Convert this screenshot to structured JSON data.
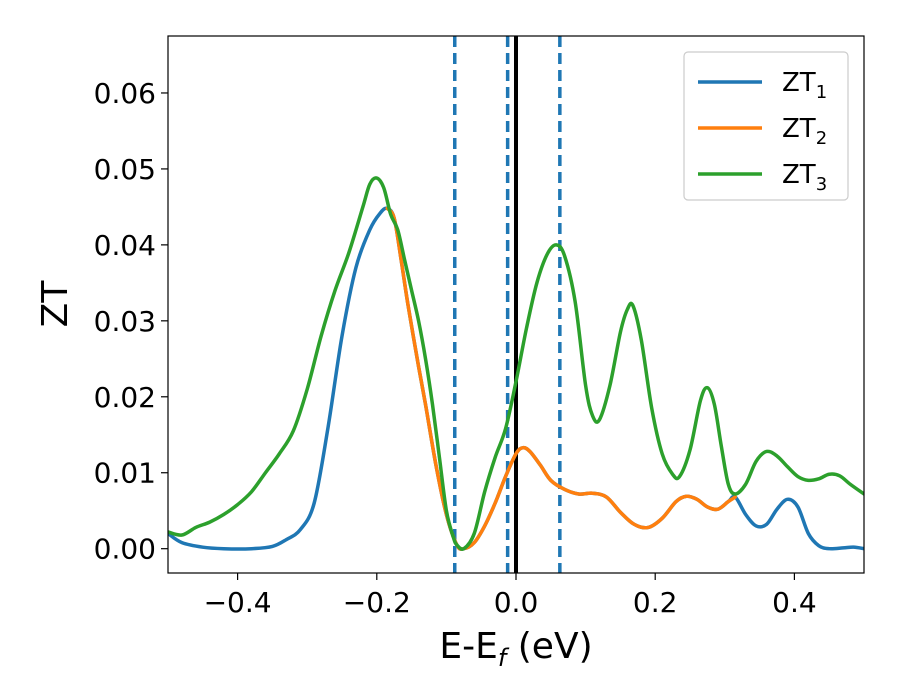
{
  "chart_data": {
    "type": "line",
    "title": "",
    "xlabel": {
      "base": "E-E",
      "sub": "f",
      "unit": " (eV)"
    },
    "ylabel": "ZT",
    "xlim": [
      -0.5,
      0.5
    ],
    "ylim": [
      -0.0032,
      0.0675
    ],
    "xticks": [
      -0.4,
      -0.2,
      0.0,
      0.2,
      0.4
    ],
    "xtick_labels": [
      "−0.4",
      "−0.2",
      "0.0",
      "0.2",
      "0.4"
    ],
    "yticks": [
      0.0,
      0.01,
      0.02,
      0.03,
      0.04,
      0.05,
      0.06
    ],
    "ytick_labels": [
      "0.00",
      "0.01",
      "0.02",
      "0.03",
      "0.04",
      "0.05",
      "0.06"
    ],
    "grid": false,
    "legend_position": "top-right",
    "vertical_lines": [
      {
        "x": -0.088,
        "style": "dashed",
        "color": "#1f77b4"
      },
      {
        "x": -0.012,
        "style": "dashed",
        "color": "#1f77b4"
      },
      {
        "x": 0.0,
        "style": "solid",
        "color": "#000000"
      },
      {
        "x": 0.063,
        "style": "dashed",
        "color": "#1f77b4"
      }
    ],
    "series": [
      {
        "name": {
          "base": "ZT",
          "sub": "1"
        },
        "color": "#1f77b4",
        "points": [
          [
            -0.5,
            0.002
          ],
          [
            -0.48,
            0.0008
          ],
          [
            -0.45,
            0.0002
          ],
          [
            -0.42,
            0.0
          ],
          [
            -0.38,
            0.0
          ],
          [
            -0.35,
            0.0003
          ],
          [
            -0.33,
            0.0012
          ],
          [
            -0.31,
            0.0025
          ],
          [
            -0.29,
            0.006
          ],
          [
            -0.27,
            0.016
          ],
          [
            -0.25,
            0.028
          ],
          [
            -0.23,
            0.037
          ],
          [
            -0.21,
            0.042
          ],
          [
            -0.195,
            0.0442
          ],
          [
            -0.185,
            0.0448
          ],
          [
            -0.175,
            0.0435
          ],
          [
            -0.165,
            0.038
          ],
          [
            -0.155,
            0.032
          ],
          [
            -0.14,
            0.024
          ],
          [
            -0.13,
            0.019
          ],
          [
            -0.115,
            0.011
          ],
          [
            -0.1,
            0.0045
          ],
          [
            -0.085,
            0.0005
          ],
          [
            -0.075,
            0.0
          ],
          [
            -0.06,
            0.0008
          ],
          [
            -0.045,
            0.003
          ],
          [
            -0.03,
            0.006
          ],
          [
            -0.015,
            0.0095
          ],
          [
            0.0,
            0.0125
          ],
          [
            0.01,
            0.0133
          ],
          [
            0.02,
            0.0128
          ],
          [
            0.035,
            0.011
          ],
          [
            0.05,
            0.009
          ],
          [
            0.07,
            0.0078
          ],
          [
            0.09,
            0.0072
          ],
          [
            0.11,
            0.0073
          ],
          [
            0.13,
            0.0068
          ],
          [
            0.15,
            0.0048
          ],
          [
            0.17,
            0.0032
          ],
          [
            0.19,
            0.0028
          ],
          [
            0.21,
            0.004
          ],
          [
            0.23,
            0.0062
          ],
          [
            0.245,
            0.0069
          ],
          [
            0.26,
            0.0065
          ],
          [
            0.275,
            0.0055
          ],
          [
            0.29,
            0.0052
          ],
          [
            0.305,
            0.0062
          ],
          [
            0.315,
            0.0068
          ],
          [
            0.33,
            0.0045
          ],
          [
            0.345,
            0.003
          ],
          [
            0.36,
            0.0032
          ],
          [
            0.375,
            0.0052
          ],
          [
            0.39,
            0.0065
          ],
          [
            0.405,
            0.0055
          ],
          [
            0.42,
            0.002
          ],
          [
            0.435,
            0.0004
          ],
          [
            0.45,
            0.0
          ],
          [
            0.47,
            0.0001
          ],
          [
            0.485,
            0.0002
          ],
          [
            0.5,
            0.0
          ]
        ]
      },
      {
        "name": {
          "base": "ZT",
          "sub": "2"
        },
        "color": "#ff7f0e",
        "points": [
          [
            -0.185,
            0.0448
          ],
          [
            -0.175,
            0.0435
          ],
          [
            -0.165,
            0.038
          ],
          [
            -0.155,
            0.032
          ],
          [
            -0.14,
            0.024
          ],
          [
            -0.13,
            0.019
          ],
          [
            -0.115,
            0.011
          ],
          [
            -0.1,
            0.0045
          ],
          [
            -0.085,
            0.0005
          ],
          [
            -0.075,
            0.0
          ],
          [
            -0.06,
            0.0008
          ],
          [
            -0.045,
            0.003
          ],
          [
            -0.03,
            0.006
          ],
          [
            -0.015,
            0.0095
          ],
          [
            0.0,
            0.0125
          ],
          [
            0.01,
            0.0133
          ],
          [
            0.02,
            0.0128
          ],
          [
            0.035,
            0.011
          ],
          [
            0.05,
            0.009
          ],
          [
            0.07,
            0.0078
          ],
          [
            0.09,
            0.0072
          ],
          [
            0.11,
            0.0073
          ],
          [
            0.13,
            0.0068
          ],
          [
            0.15,
            0.0048
          ],
          [
            0.17,
            0.0032
          ],
          [
            0.19,
            0.0028
          ],
          [
            0.21,
            0.004
          ],
          [
            0.23,
            0.0062
          ],
          [
            0.245,
            0.0069
          ],
          [
            0.26,
            0.0065
          ],
          [
            0.275,
            0.0055
          ],
          [
            0.29,
            0.0052
          ],
          [
            0.305,
            0.0062
          ],
          [
            0.315,
            0.0068
          ]
        ]
      },
      {
        "name": {
          "base": "ZT",
          "sub": "3"
        },
        "color": "#2ca02c",
        "points": [
          [
            -0.5,
            0.0022
          ],
          [
            -0.48,
            0.0018
          ],
          [
            -0.46,
            0.0028
          ],
          [
            -0.44,
            0.0035
          ],
          [
            -0.42,
            0.0045
          ],
          [
            -0.4,
            0.0058
          ],
          [
            -0.38,
            0.0075
          ],
          [
            -0.36,
            0.01
          ],
          [
            -0.34,
            0.0125
          ],
          [
            -0.32,
            0.0155
          ],
          [
            -0.3,
            0.021
          ],
          [
            -0.28,
            0.028
          ],
          [
            -0.26,
            0.034
          ],
          [
            -0.24,
            0.039
          ],
          [
            -0.22,
            0.045
          ],
          [
            -0.21,
            0.048
          ],
          [
            -0.2,
            0.0488
          ],
          [
            -0.19,
            0.0475
          ],
          [
            -0.18,
            0.044
          ],
          [
            -0.17,
            0.042
          ],
          [
            -0.16,
            0.038
          ],
          [
            -0.15,
            0.034
          ],
          [
            -0.14,
            0.03
          ],
          [
            -0.13,
            0.025
          ],
          [
            -0.12,
            0.019
          ],
          [
            -0.11,
            0.012
          ],
          [
            -0.1,
            0.005
          ],
          [
            -0.09,
            0.0015
          ],
          [
            -0.085,
            0.0005
          ],
          [
            -0.075,
            0.0
          ],
          [
            -0.06,
            0.002
          ],
          [
            -0.045,
            0.0075
          ],
          [
            -0.03,
            0.012
          ],
          [
            -0.015,
            0.0158
          ],
          [
            0.0,
            0.022
          ],
          [
            0.015,
            0.029
          ],
          [
            0.03,
            0.035
          ],
          [
            0.045,
            0.0388
          ],
          [
            0.058,
            0.04
          ],
          [
            0.07,
            0.0385
          ],
          [
            0.085,
            0.0325
          ],
          [
            0.1,
            0.0215
          ],
          [
            0.11,
            0.0175
          ],
          [
            0.12,
            0.017
          ],
          [
            0.135,
            0.0215
          ],
          [
            0.15,
            0.0285
          ],
          [
            0.16,
            0.0315
          ],
          [
            0.168,
            0.032
          ],
          [
            0.18,
            0.0275
          ],
          [
            0.195,
            0.0185
          ],
          [
            0.21,
            0.0125
          ],
          [
            0.225,
            0.0098
          ],
          [
            0.235,
            0.0095
          ],
          [
            0.25,
            0.013
          ],
          [
            0.265,
            0.0195
          ],
          [
            0.275,
            0.0212
          ],
          [
            0.285,
            0.019
          ],
          [
            0.295,
            0.0135
          ],
          [
            0.305,
            0.0085
          ],
          [
            0.315,
            0.0072
          ],
          [
            0.33,
            0.0085
          ],
          [
            0.345,
            0.0115
          ],
          [
            0.36,
            0.0128
          ],
          [
            0.375,
            0.0122
          ],
          [
            0.39,
            0.0108
          ],
          [
            0.405,
            0.0095
          ],
          [
            0.42,
            0.009
          ],
          [
            0.435,
            0.0092
          ],
          [
            0.45,
            0.0098
          ],
          [
            0.465,
            0.0096
          ],
          [
            0.48,
            0.0085
          ],
          [
            0.5,
            0.0072
          ]
        ]
      }
    ]
  }
}
